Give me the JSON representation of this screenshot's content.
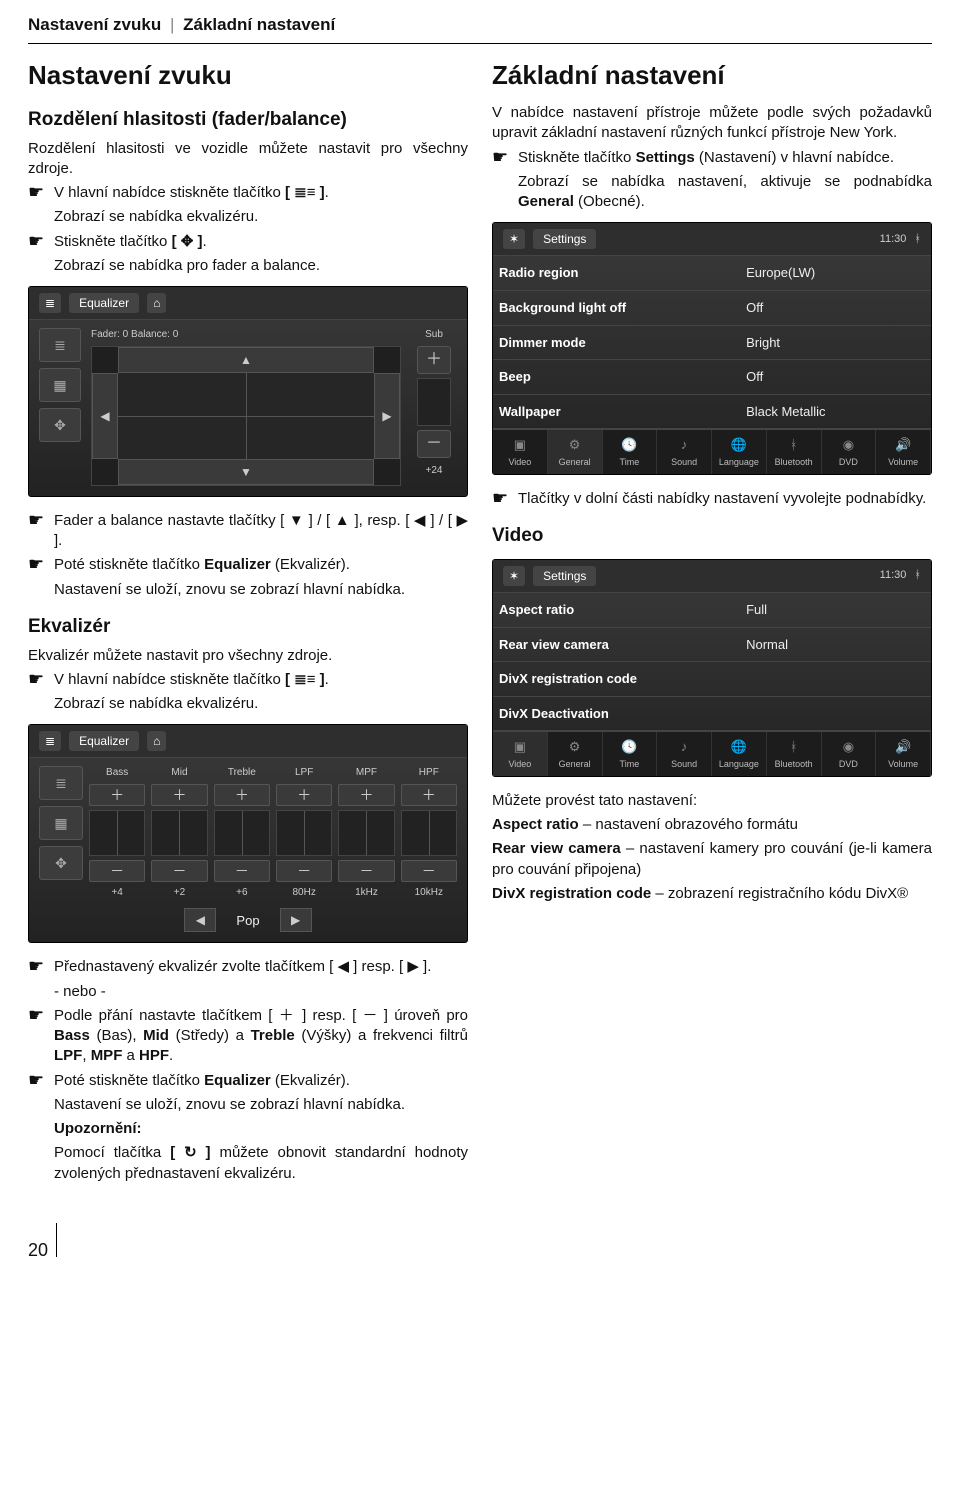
{
  "crumb": {
    "a": "Nastavení zvuku",
    "b": "Základní nastavení"
  },
  "page_number": "20",
  "left": {
    "h1": "Nastavení zvuku",
    "h2_fader": "Rozdělení hlasitosti (fader/balance)",
    "p_fader_intro": "Rozdělení hlasitosti ve vozidle můžete nastavit pro všechny zdroje.",
    "b_fader_1a": "V hlavní nabídce stiskněte tlačítko ",
    "b_fader_1b": ".",
    "p_fader_eq": "Zobrazí se nabídka ekvalizéru.",
    "b_fader_2a": "Stiskněte tlačítko ",
    "b_fader_2b": ".",
    "p_fader_balance": "Zobrazí se nabídka pro fader a balance.",
    "shot_fader": {
      "title": "Equalizer",
      "fader_label": "Fader: 0 Balance: 0",
      "sub": "Sub",
      "bot": "+24"
    },
    "b_fader_arrows": "Fader a balance nastavte tlačítky [ ▼ ] / [ ▲ ], resp. [ ◀ ] / [ ▶ ].",
    "b_fader_eq_a": "Poté stiskněte tlačítko ",
    "b_fader_eq_b": "Equalizer",
    "b_fader_eq_c": " (Ekvalizér).",
    "p_fader_save": "Nastavení se uloží, znovu se zobrazí hlavní nabídka.",
    "h2_eq": "Ekvalizér",
    "p_eq_intro": "Ekvalizér můžete nastavit pro všechny zdroje.",
    "b_eq_1a": "V hlavní nabídce stiskněte tlačítko ",
    "b_eq_1b": ".",
    "p_eq_menu": "Zobrazí se nabídka ekvalizéru.",
    "shot_eq": {
      "title": "Equalizer",
      "cols": [
        "Bass",
        "Mid",
        "Treble",
        "LPF",
        "MPF",
        "HPF"
      ],
      "vals": [
        "+4",
        "+2",
        "+6",
        "80Hz",
        "1kHz",
        "10kHz"
      ],
      "preset": "Pop"
    },
    "b_eq_preset": "Přednastavený ekvalizér zvolte tlačítkem [ ◀ ] resp. [ ▶ ].",
    "p_or": "- nebo -",
    "b_eq_pm_a": "Podle přání nastavte tlačítkem [ ＋ ] resp. [ － ] úroveň pro ",
    "b_eq_pm_bass": "Bass",
    "b_eq_pm_bass2": " (Bas), ",
    "b_eq_pm_mid": "Mid",
    "b_eq_pm_mid2": " (Středy) a ",
    "b_eq_pm_treble": "Treble",
    "b_eq_pm_treble2": " (Výšky) a frekvenci filtrů ",
    "b_eq_pm_lpf": "LPF",
    "c1": ", ",
    "b_eq_pm_mpf": "MPF",
    "c2": " a ",
    "b_eq_pm_hpf": "HPF",
    "c3": ".",
    "b_eq_save_a": "Poté stiskněte tlačítko ",
    "b_eq_save_b": "Equalizer",
    "b_eq_save_c": " (Ekvalizér).",
    "p_eq_saved": "Nastavení se uloží, znovu se zobrazí hlavní nabídka.",
    "note_h": "Upozornění:",
    "note_p_a": "Pomocí tlačítka ",
    "note_p_b": " můžete obnovit standardní hodnoty zvolených přednastavení ekvalizéru."
  },
  "right": {
    "h1": "Základní nastavení",
    "p_intro": "V nabídce nastavení přístroje můžete podle svých požadavků upravit základní nastavení různých funkcí přístroje New York.",
    "b1a": "Stiskněte tlačítko ",
    "b1b": "Settings",
    "b1c": " (Nastavení) v hlavní nabídce.",
    "p_sub_a": "Zobrazí se nabídka nastavení, aktivuje se podnabídka ",
    "p_sub_b": "General",
    "p_sub_c": " (Obecné).",
    "shot_general": {
      "title": "Settings",
      "time": "11:30",
      "rows": [
        {
          "k": "Radio region",
          "v": "Europe(LW)"
        },
        {
          "k": "Background light off",
          "v": "Off"
        },
        {
          "k": "Dimmer mode",
          "v": "Bright"
        },
        {
          "k": "Beep",
          "v": "Off"
        },
        {
          "k": "Wallpaper",
          "v": "Black Metallic"
        }
      ],
      "tabs": [
        "Video",
        "General",
        "Time",
        "Sound",
        "Language",
        "Bluetooth",
        "DVD",
        "Volume"
      ],
      "active_tab": 1
    },
    "b_tabs": "Tlačítky v dolní části nabídky nastavení vyvolejte podnabídky.",
    "h2_video": "Video",
    "shot_video": {
      "title": "Settings",
      "time": "11:30",
      "rows": [
        {
          "k": "Aspect ratio",
          "v": "Full"
        },
        {
          "k": "Rear view camera",
          "v": "Normal"
        },
        {
          "k": "DivX registration code",
          "v": ""
        },
        {
          "k": "DivX Deactivation",
          "v": ""
        }
      ],
      "tabs": [
        "Video",
        "General",
        "Time",
        "Sound",
        "Language",
        "Bluetooth",
        "DVD",
        "Volume"
      ],
      "active_tab": 0
    },
    "p_you_can": "Můžete provést tato nastavení:",
    "d1a": "Aspect ratio",
    "d1b": " – nastavení obrazového formátu",
    "d2a": "Rear view camera",
    "d2b": " – nastavení kamery pro couvání (je-li kamera pro couvání připojena)",
    "d3a": "DivX registration code",
    "d3b": " – zobrazení registračního kódu DivX®"
  },
  "glyph": {
    "hand": "☛",
    "eq_icon": "[ ≣≡ ]",
    "fader_icon": "[ ✥ ]",
    "reset_icon": "[ ↻ ]"
  }
}
